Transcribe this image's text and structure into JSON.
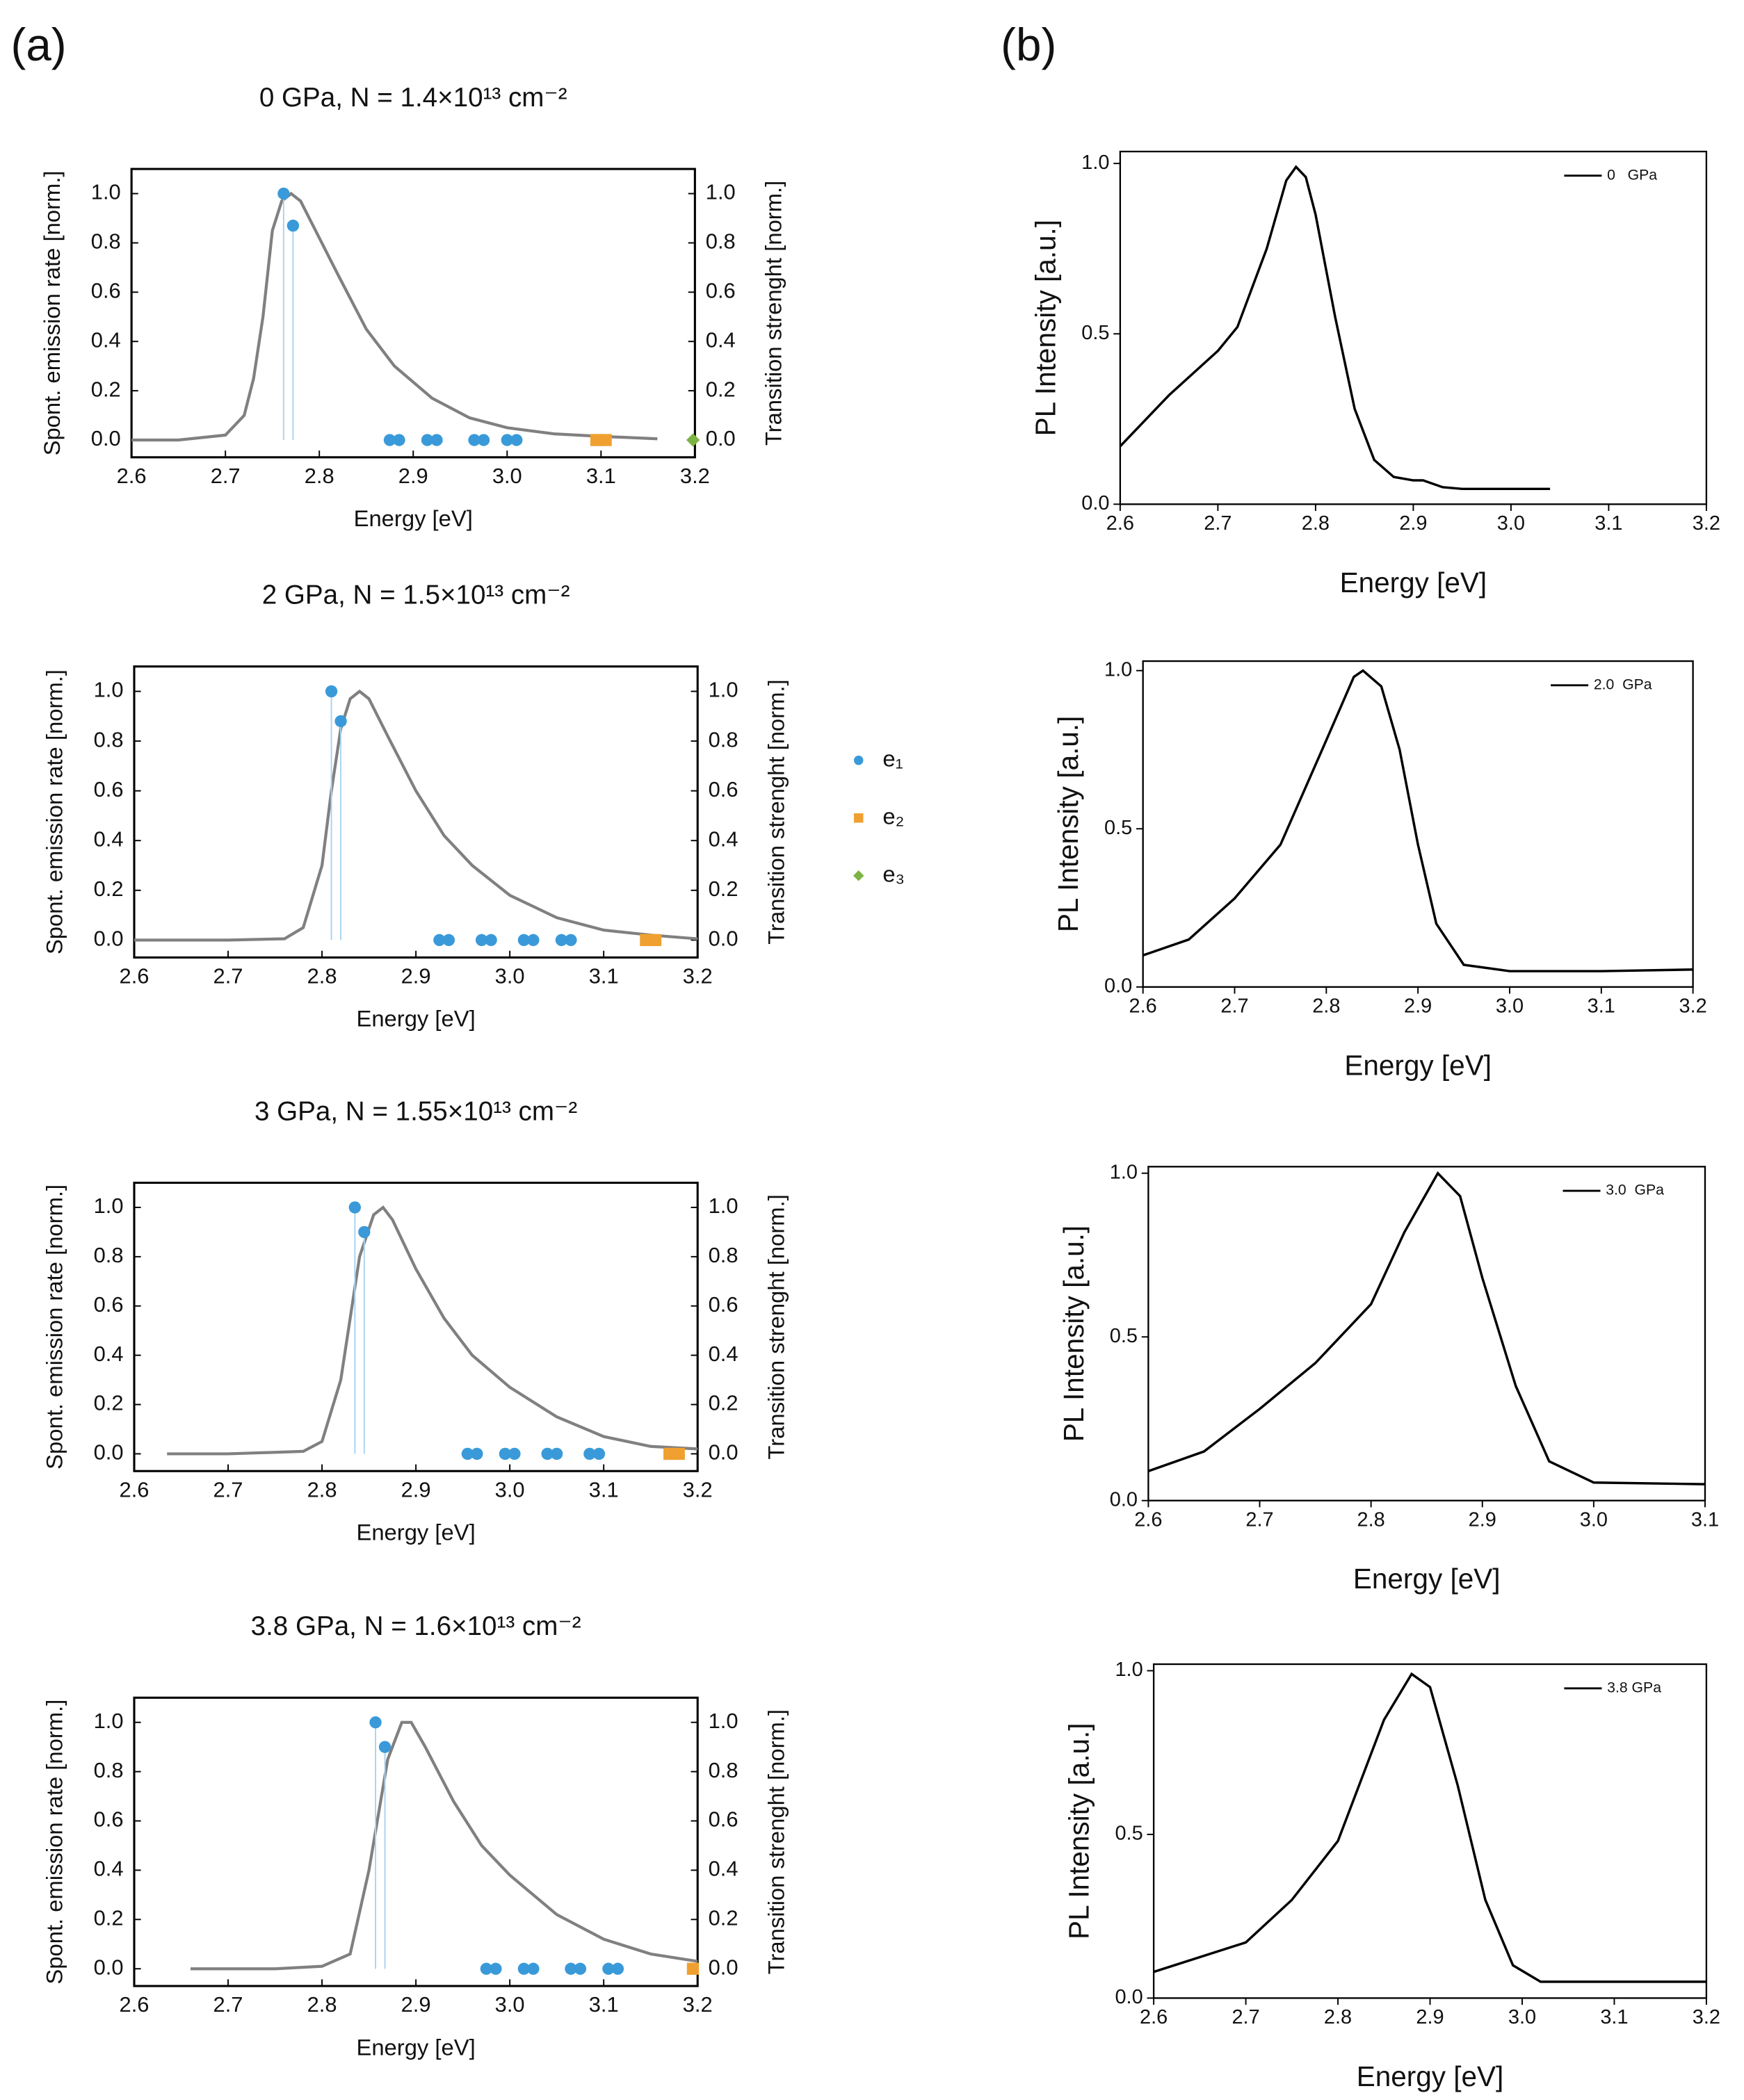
{
  "panel_labels": [
    "(a)",
    "(b)"
  ],
  "chart_data": [
    {
      "type": "line",
      "title": "0 GPa, N = 1.4×10¹³ cm⁻²",
      "xlabel": "Energy [eV]",
      "ylabel": "Spont. emission rate [norm.]",
      "y2label": "Transition strenght [norm.]",
      "xlim": [
        2.6,
        3.2
      ],
      "ylim": [
        -0.07,
        1.1
      ],
      "y2lim": [
        -0.07,
        1.1
      ],
      "xticks": [
        2.6,
        2.7,
        2.8,
        2.9,
        {
          "value": 3,
          "label": "3.0"
        },
        3.1,
        3.2
      ],
      "yticks": [
        {
          "value": 0,
          "label": "0.0"
        },
        0.2,
        0.4,
        0.6,
        0.8,
        {
          "value": 1,
          "label": "1.0"
        }
      ],
      "y2ticks": [
        {
          "value": 0,
          "label": "0.0"
        },
        0.2,
        0.4,
        0.6,
        0.8,
        {
          "value": 1,
          "label": "1.0"
        }
      ],
      "series": [
        {
          "color": "#808080",
          "marker": "line",
          "x": [
            2.6,
            2.65,
            2.7,
            2.72,
            2.73,
            2.74,
            2.75,
            2.76,
            2.77,
            2.78,
            2.8,
            2.82,
            2.85,
            2.88,
            2.92,
            2.96,
            3.0,
            3.05,
            3.1,
            3.16
          ],
          "values": [
            0,
            0,
            0.02,
            0.1,
            0.25,
            0.5,
            0.85,
            0.97,
            1.0,
            0.97,
            0.82,
            0.67,
            0.45,
            0.3,
            0.17,
            0.09,
            0.05,
            0.025,
            0.015,
            0.005
          ]
        },
        {
          "name": "e₁",
          "color": "#3a9ad9",
          "marker": "circle",
          "axis": "y2",
          "x": [
            2.762,
            2.772,
            2.875,
            2.885,
            2.915,
            2.925,
            2.965,
            2.975,
            3.0,
            3.01
          ],
          "values": [
            1.0,
            0.87,
            0,
            0,
            0,
            0,
            0,
            0,
            0,
            0
          ]
        },
        {
          "name": "e₂",
          "color": "#f0a030",
          "marker": "square",
          "axis": "y2",
          "x": [
            3.095,
            3.105
          ],
          "values": [
            0,
            0
          ]
        },
        {
          "name": "e₃",
          "color": "#7cb342",
          "marker": "diamond",
          "axis": "y2",
          "x": [
            3.198
          ],
          "values": [
            0
          ]
        }
      ]
    },
    {
      "type": "line",
      "title": "2 GPa, N = 1.5×10¹³ cm⁻²",
      "xlabel": "Energy [eV]",
      "ylabel": "Spont. emission rate [norm.]",
      "y2label": "Transition strenght [norm.]",
      "xlim": [
        2.6,
        3.2
      ],
      "ylim": [
        -0.07,
        1.1
      ],
      "y2lim": [
        -0.07,
        1.1
      ],
      "xticks": [
        2.6,
        2.7,
        2.8,
        2.9,
        {
          "value": 3,
          "label": "3.0"
        },
        3.1,
        3.2
      ],
      "yticks": [
        {
          "value": 0,
          "label": "0.0"
        },
        0.2,
        0.4,
        0.6,
        0.8,
        {
          "value": 1,
          "label": "1.0"
        }
      ],
      "y2ticks": [
        {
          "value": 0,
          "label": "0.0"
        },
        0.2,
        0.4,
        0.6,
        0.8,
        {
          "value": 1,
          "label": "1.0"
        }
      ],
      "series": [
        {
          "color": "#808080",
          "marker": "line",
          "x": [
            2.6,
            2.7,
            2.76,
            2.78,
            2.8,
            2.81,
            2.82,
            2.83,
            2.84,
            2.85,
            2.87,
            2.9,
            2.93,
            2.96,
            3.0,
            3.05,
            3.1,
            3.15,
            3.2
          ],
          "values": [
            0,
            0,
            0.005,
            0.05,
            0.3,
            0.6,
            0.85,
            0.97,
            1.0,
            0.97,
            0.82,
            0.6,
            0.42,
            0.3,
            0.18,
            0.09,
            0.04,
            0.02,
            0.005
          ]
        },
        {
          "color": "#3a9ad9",
          "marker": "circle",
          "axis": "y2",
          "x": [
            2.81,
            2.82,
            2.925,
            2.935,
            2.97,
            2.98,
            3.015,
            3.025,
            3.055,
            3.065
          ],
          "values": [
            1.0,
            0.88,
            0,
            0,
            0,
            0,
            0,
            0,
            0,
            0
          ]
        },
        {
          "color": "#f0a030",
          "marker": "square",
          "axis": "y2",
          "x": [
            3.145,
            3.155
          ],
          "values": [
            0,
            0
          ]
        }
      ]
    },
    {
      "type": "line",
      "title": "3 GPa, N = 1.55×10¹³ cm⁻²",
      "xlabel": "Energy [eV]",
      "ylabel": "Spont. emission rate [norm.]",
      "y2label": "Transition strenght [norm.]",
      "xlim": [
        2.6,
        3.2
      ],
      "ylim": [
        -0.07,
        1.1
      ],
      "y2lim": [
        -0.07,
        1.1
      ],
      "xticks": [
        2.6,
        2.7,
        2.8,
        2.9,
        {
          "value": 3,
          "label": "3.0"
        },
        3.1,
        3.2
      ],
      "yticks": [
        {
          "value": 0,
          "label": "0.0"
        },
        0.2,
        0.4,
        0.6,
        0.8,
        {
          "value": 1,
          "label": "1.0"
        }
      ],
      "y2ticks": [
        {
          "value": 0,
          "label": "0.0"
        },
        0.2,
        0.4,
        0.6,
        0.8,
        {
          "value": 1,
          "label": "1.0"
        }
      ],
      "series": [
        {
          "color": "#808080",
          "marker": "line",
          "x": [
            2.635,
            2.7,
            2.78,
            2.8,
            2.82,
            2.84,
            2.855,
            2.865,
            2.875,
            2.9,
            2.93,
            2.96,
            3.0,
            3.05,
            3.1,
            3.15,
            3.2
          ],
          "values": [
            0,
            0,
            0.01,
            0.05,
            0.3,
            0.8,
            0.97,
            1.0,
            0.95,
            0.75,
            0.55,
            0.4,
            0.27,
            0.15,
            0.07,
            0.03,
            0.02
          ]
        },
        {
          "color": "#3a9ad9",
          "marker": "circle",
          "axis": "y2",
          "x": [
            2.835,
            2.845,
            2.955,
            2.965,
            2.995,
            3.005,
            3.04,
            3.05,
            3.085,
            3.095
          ],
          "values": [
            1.0,
            0.9,
            0,
            0,
            0,
            0,
            0,
            0,
            0,
            0
          ]
        },
        {
          "color": "#f0a030",
          "marker": "square",
          "axis": "y2",
          "x": [
            3.17,
            3.18
          ],
          "values": [
            0,
            0
          ]
        }
      ]
    },
    {
      "type": "line",
      "title": "3.8 GPa, N = 1.6×10¹³ cm⁻²",
      "xlabel": "Energy [eV]",
      "ylabel": "Spont. emission rate [norm.]",
      "y2label": "Transition strenght [norm.]",
      "xlim": [
        2.6,
        3.2
      ],
      "ylim": [
        -0.07,
        1.1
      ],
      "y2lim": [
        -0.07,
        1.1
      ],
      "xticks": [
        2.6,
        2.7,
        2.8,
        2.9,
        {
          "value": 3,
          "label": "3.0"
        },
        3.1,
        3.2
      ],
      "yticks": [
        {
          "value": 0,
          "label": "0.0"
        },
        0.2,
        0.4,
        0.6,
        0.8,
        {
          "value": 1,
          "label": "1.0"
        }
      ],
      "y2ticks": [
        {
          "value": 0,
          "label": "0.0"
        },
        0.2,
        0.4,
        0.6,
        0.8,
        {
          "value": 1,
          "label": "1.0"
        }
      ],
      "series": [
        {
          "color": "#808080",
          "marker": "line",
          "x": [
            2.66,
            2.75,
            2.8,
            2.83,
            2.85,
            2.87,
            2.885,
            2.895,
            2.91,
            2.94,
            2.97,
            3.0,
            3.05,
            3.1,
            3.15,
            3.2
          ],
          "values": [
            0,
            0,
            0.01,
            0.06,
            0.4,
            0.85,
            1.0,
            1.0,
            0.9,
            0.68,
            0.5,
            0.38,
            0.22,
            0.12,
            0.06,
            0.03
          ]
        },
        {
          "color": "#3a9ad9",
          "marker": "circle",
          "axis": "y2",
          "x": [
            2.857,
            2.867,
            2.975,
            2.985,
            3.015,
            3.025,
            3.065,
            3.075,
            3.105,
            3.115
          ],
          "values": [
            1.0,
            0.9,
            0,
            0,
            0,
            0,
            0,
            0,
            0,
            0
          ]
        },
        {
          "color": "#f0a030",
          "marker": "square",
          "axis": "y2",
          "x": [
            3.195
          ],
          "values": [
            0
          ]
        }
      ]
    },
    {
      "type": "line",
      "xlabel": "Energy [eV]",
      "ylabel": "PL Intensity [a.u.]",
      "xlim": [
        2.6,
        3.2
      ],
      "ylim": [
        0,
        1.035
      ],
      "xticks": [
        2.6,
        2.7,
        2.8,
        2.9,
        {
          "value": 3,
          "label": "3.0"
        },
        3.1,
        3.2
      ],
      "yticks": [
        {
          "value": 0,
          "label": "0.0"
        },
        0.5,
        {
          "value": 1,
          "label": "1.0"
        }
      ],
      "legend": "upper right",
      "series": [
        {
          "name": "0   GPa",
          "color": "#000000",
          "x": [
            2.6,
            2.65,
            2.7,
            2.72,
            2.75,
            2.77,
            2.78,
            2.79,
            2.8,
            2.82,
            2.84,
            2.86,
            2.88,
            2.9,
            2.91,
            2.93,
            2.95,
            3.04
          ],
          "values": [
            0.17,
            0.32,
            0.45,
            0.52,
            0.75,
            0.95,
            0.99,
            0.96,
            0.85,
            0.55,
            0.28,
            0.13,
            0.08,
            0.07,
            0.07,
            0.05,
            0.045,
            0.045
          ]
        }
      ]
    },
    {
      "type": "line",
      "xlabel": "Energy [eV]",
      "ylabel": "PL Intensity [a.u.]",
      "xlim": [
        2.6,
        3.2
      ],
      "ylim": [
        0,
        1.03
      ],
      "xticks": [
        2.6,
        2.7,
        2.8,
        2.9,
        {
          "value": 3,
          "label": "3.0"
        },
        3.1,
        3.2
      ],
      "yticks": [
        {
          "value": 0,
          "label": "0.0"
        },
        0.5,
        {
          "value": 1,
          "label": "1.0"
        }
      ],
      "legend": "upper right",
      "series": [
        {
          "name": "2.0  GPa",
          "color": "#000000",
          "x": [
            2.6,
            2.65,
            2.7,
            2.75,
            2.8,
            2.83,
            2.84,
            2.86,
            2.88,
            2.9,
            2.92,
            2.95,
            3.0,
            3.1,
            3.2
          ],
          "values": [
            0.1,
            0.15,
            0.28,
            0.45,
            0.78,
            0.98,
            1.0,
            0.95,
            0.75,
            0.45,
            0.2,
            0.07,
            0.05,
            0.05,
            0.055
          ]
        }
      ]
    },
    {
      "type": "line",
      "xlabel": "Energy [eV]",
      "ylabel": "PL Intensity [a.u.]",
      "xlim": [
        2.6,
        3.1
      ],
      "ylim": [
        0,
        1.02
      ],
      "xticks": [
        2.6,
        2.7,
        2.8,
        2.9,
        {
          "value": 3,
          "label": "3.0"
        },
        3.1
      ],
      "yticks": [
        {
          "value": 0,
          "label": "0.0"
        },
        0.5,
        {
          "value": 1,
          "label": "1.0"
        }
      ],
      "legend": "upper right",
      "series": [
        {
          "name": "3.0  GPa",
          "color": "#000000",
          "x": [
            2.6,
            2.65,
            2.7,
            2.75,
            2.8,
            2.83,
            2.86,
            2.88,
            2.9,
            2.93,
            2.96,
            3.0,
            3.1
          ],
          "values": [
            0.09,
            0.15,
            0.28,
            0.42,
            0.6,
            0.82,
            1.0,
            0.93,
            0.68,
            0.35,
            0.12,
            0.055,
            0.05
          ]
        }
      ]
    },
    {
      "type": "line",
      "xlabel": "Energy [eV]",
      "ylabel": "PL Intensity [a.u.]",
      "xlim": [
        2.6,
        3.2
      ],
      "ylim": [
        0,
        1.02
      ],
      "xticks": [
        2.6,
        2.7,
        2.8,
        2.9,
        {
          "value": 3,
          "label": "3.0"
        },
        3.1,
        3.2
      ],
      "yticks": [
        {
          "value": 0,
          "label": "0.0"
        },
        0.5,
        {
          "value": 1,
          "label": "1.0"
        }
      ],
      "legend": "upper right",
      "series": [
        {
          "name": "3.8 GPa",
          "color": "#000000",
          "x": [
            2.6,
            2.7,
            2.75,
            2.8,
            2.85,
            2.88,
            2.9,
            2.93,
            2.96,
            2.99,
            3.02,
            3.2
          ],
          "values": [
            0.08,
            0.17,
            0.3,
            0.48,
            0.85,
            0.99,
            0.95,
            0.65,
            0.3,
            0.1,
            0.05,
            0.05
          ]
        }
      ]
    }
  ]
}
